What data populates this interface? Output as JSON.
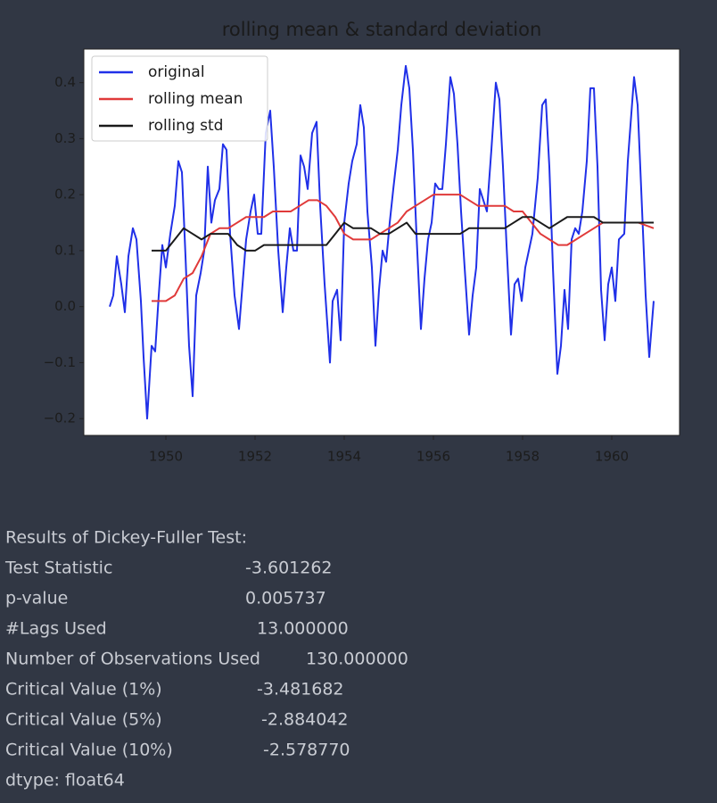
{
  "chart_data": {
    "type": "line",
    "title": "rolling mean & standard deviation",
    "xlim": [
      1948.16,
      1961.52
    ],
    "xticks": [
      1950,
      1952,
      1954,
      1956,
      1958,
      1960
    ],
    "ylim": [
      -0.23,
      0.46
    ],
    "yticks": [
      {
        "value": -0.2,
        "label": "−0.2"
      },
      {
        "value": -0.1,
        "label": "−0.1"
      },
      {
        "value": 0,
        "label": "0.0"
      },
      0.1,
      0.2,
      0.3,
      0.4
    ],
    "legend": "upper left",
    "grid": false,
    "series": [
      {
        "name": "original",
        "color": "#2030e8",
        "x": [
          1948.74,
          1948.82,
          1948.9,
          1949.0,
          1949.08,
          1949.16,
          1949.26,
          1949.34,
          1949.44,
          1949.5,
          1949.58,
          1949.68,
          1949.76,
          1949.84,
          1949.92,
          1950.0,
          1950.1,
          1950.2,
          1950.28,
          1950.36,
          1950.44,
          1950.52,
          1950.6,
          1950.68,
          1950.78,
          1950.86,
          1950.94,
          1951.02,
          1951.1,
          1951.2,
          1951.28,
          1951.36,
          1951.44,
          1951.54,
          1951.64,
          1951.72,
          1951.8,
          1951.9,
          1951.98,
          1952.06,
          1952.14,
          1952.24,
          1952.34,
          1952.42,
          1952.52,
          1952.62,
          1952.7,
          1952.78,
          1952.86,
          1952.94,
          1953.02,
          1953.1,
          1953.18,
          1953.28,
          1953.38,
          1953.46,
          1953.56,
          1953.68,
          1953.74,
          1953.84,
          1953.92,
          1954.0,
          1954.1,
          1954.18,
          1954.28,
          1954.36,
          1954.44,
          1954.52,
          1954.62,
          1954.7,
          1954.78,
          1954.86,
          1954.94,
          1955.02,
          1955.1,
          1955.2,
          1955.28,
          1955.38,
          1955.46,
          1955.54,
          1955.62,
          1955.72,
          1955.8,
          1955.88,
          1955.96,
          1956.04,
          1956.12,
          1956.2,
          1956.28,
          1956.38,
          1956.46,
          1956.54,
          1956.62,
          1956.7,
          1956.8,
          1956.88,
          1956.96,
          1957.04,
          1957.12,
          1957.2,
          1957.3,
          1957.4,
          1957.48,
          1957.56,
          1957.64,
          1957.74,
          1957.82,
          1957.9,
          1957.98,
          1958.06,
          1958.14,
          1958.22,
          1958.34,
          1958.44,
          1958.52,
          1958.6,
          1958.68,
          1958.78,
          1958.86,
          1958.94,
          1959.02,
          1959.1,
          1959.18,
          1959.26,
          1959.34,
          1959.44,
          1959.52,
          1959.6,
          1959.68,
          1959.76,
          1959.84,
          1959.92,
          1960.0,
          1960.08,
          1960.16,
          1960.28,
          1960.36,
          1960.5,
          1960.58,
          1960.66,
          1960.76,
          1960.84,
          1960.94
        ],
        "values": [
          0.0,
          0.02,
          0.09,
          0.04,
          -0.01,
          0.09,
          0.14,
          0.12,
          0.01,
          -0.09,
          -0.2,
          -0.07,
          -0.08,
          0.02,
          0.11,
          0.07,
          0.13,
          0.18,
          0.26,
          0.24,
          0.09,
          -0.07,
          -0.16,
          0.02,
          0.06,
          0.1,
          0.25,
          0.15,
          0.19,
          0.21,
          0.29,
          0.28,
          0.13,
          0.02,
          -0.04,
          0.04,
          0.12,
          0.17,
          0.2,
          0.13,
          0.13,
          0.31,
          0.35,
          0.25,
          0.1,
          -0.01,
          0.07,
          0.14,
          0.1,
          0.1,
          0.27,
          0.25,
          0.21,
          0.31,
          0.33,
          0.18,
          0.04,
          -0.1,
          0.01,
          0.03,
          -0.06,
          0.15,
          0.22,
          0.26,
          0.29,
          0.36,
          0.32,
          0.17,
          0.07,
          -0.07,
          0.03,
          0.1,
          0.08,
          0.15,
          0.21,
          0.28,
          0.36,
          0.43,
          0.39,
          0.28,
          0.13,
          -0.04,
          0.05,
          0.12,
          0.15,
          0.22,
          0.21,
          0.21,
          0.29,
          0.41,
          0.38,
          0.29,
          0.17,
          0.07,
          -0.05,
          0.02,
          0.07,
          0.21,
          0.19,
          0.17,
          0.28,
          0.4,
          0.37,
          0.25,
          0.11,
          -0.05,
          0.04,
          0.05,
          0.01,
          0.07,
          0.1,
          0.13,
          0.23,
          0.36,
          0.37,
          0.25,
          0.07,
          -0.12,
          -0.07,
          0.03,
          -0.04,
          0.12,
          0.14,
          0.13,
          0.17,
          0.26,
          0.39,
          0.39,
          0.25,
          0.03,
          -0.06,
          0.04,
          0.07,
          0.01,
          0.12,
          0.13,
          0.26,
          0.41,
          0.36,
          0.21,
          0.02,
          -0.09,
          0.01
        ]
      },
      {
        "name": "rolling mean",
        "color": "#e03a3a",
        "x": [
          1949.68,
          1949.84,
          1950.0,
          1950.2,
          1950.4,
          1950.6,
          1950.8,
          1951.0,
          1951.2,
          1951.4,
          1951.6,
          1951.8,
          1952.0,
          1952.2,
          1952.4,
          1952.6,
          1952.8,
          1953.0,
          1953.2,
          1953.4,
          1953.6,
          1953.8,
          1954.0,
          1954.2,
          1954.4,
          1954.6,
          1954.8,
          1955.0,
          1955.2,
          1955.4,
          1955.6,
          1955.8,
          1956.0,
          1956.2,
          1956.4,
          1956.6,
          1956.8,
          1957.0,
          1957.2,
          1957.4,
          1957.6,
          1957.8,
          1958.0,
          1958.2,
          1958.4,
          1958.6,
          1958.8,
          1959.0,
          1959.2,
          1959.4,
          1959.6,
          1959.8,
          1960.0,
          1960.2,
          1960.4,
          1960.6,
          1960.94
        ],
        "values": [
          0.01,
          0.01,
          0.01,
          0.02,
          0.05,
          0.06,
          0.09,
          0.13,
          0.14,
          0.14,
          0.15,
          0.16,
          0.16,
          0.16,
          0.17,
          0.17,
          0.17,
          0.18,
          0.19,
          0.19,
          0.18,
          0.16,
          0.13,
          0.12,
          0.12,
          0.12,
          0.13,
          0.14,
          0.15,
          0.17,
          0.18,
          0.19,
          0.2,
          0.2,
          0.2,
          0.2,
          0.19,
          0.18,
          0.18,
          0.18,
          0.18,
          0.17,
          0.17,
          0.15,
          0.13,
          0.12,
          0.11,
          0.11,
          0.12,
          0.13,
          0.14,
          0.15,
          0.15,
          0.15,
          0.15,
          0.15,
          0.14
        ]
      },
      {
        "name": "rolling std",
        "color": "#1a1a1a",
        "x": [
          1949.68,
          1949.84,
          1950.0,
          1950.2,
          1950.4,
          1950.6,
          1950.8,
          1951.0,
          1951.2,
          1951.4,
          1951.6,
          1951.8,
          1952.0,
          1952.2,
          1952.4,
          1952.6,
          1952.8,
          1953.0,
          1953.2,
          1953.4,
          1953.6,
          1953.8,
          1954.0,
          1954.2,
          1954.4,
          1954.6,
          1954.8,
          1955.0,
          1955.2,
          1955.4,
          1955.6,
          1955.8,
          1956.0,
          1956.2,
          1956.4,
          1956.6,
          1956.8,
          1957.0,
          1957.2,
          1957.4,
          1957.6,
          1957.8,
          1958.0,
          1958.2,
          1958.4,
          1958.6,
          1958.8,
          1959.0,
          1959.2,
          1959.4,
          1959.6,
          1959.8,
          1960.0,
          1960.2,
          1960.4,
          1960.6,
          1960.94
        ],
        "values": [
          0.1,
          0.1,
          0.1,
          0.12,
          0.14,
          0.13,
          0.12,
          0.13,
          0.13,
          0.13,
          0.11,
          0.1,
          0.1,
          0.11,
          0.11,
          0.11,
          0.11,
          0.11,
          0.11,
          0.11,
          0.11,
          0.13,
          0.15,
          0.14,
          0.14,
          0.14,
          0.13,
          0.13,
          0.14,
          0.15,
          0.13,
          0.13,
          0.13,
          0.13,
          0.13,
          0.13,
          0.14,
          0.14,
          0.14,
          0.14,
          0.14,
          0.15,
          0.16,
          0.16,
          0.15,
          0.14,
          0.15,
          0.16,
          0.16,
          0.16,
          0.16,
          0.15,
          0.15,
          0.15,
          0.15,
          0.15,
          0.15
        ]
      }
    ]
  },
  "output": {
    "heading": "Results of Dickey-Fuller Test:",
    "rows": [
      [
        "Test Statistic",
        "-3.601262"
      ],
      [
        "p-value",
        "0.005737"
      ],
      [
        "#Lags Used",
        "13.000000"
      ],
      [
        "Number of Observations Used",
        "130.000000"
      ],
      [
        "Critical Value (1%)",
        "-3.481682"
      ],
      [
        "Critical Value (5%)",
        "-2.884042"
      ],
      [
        "Critical Value (10%)",
        "-2.578770"
      ]
    ],
    "footer": "dtype: float64"
  }
}
